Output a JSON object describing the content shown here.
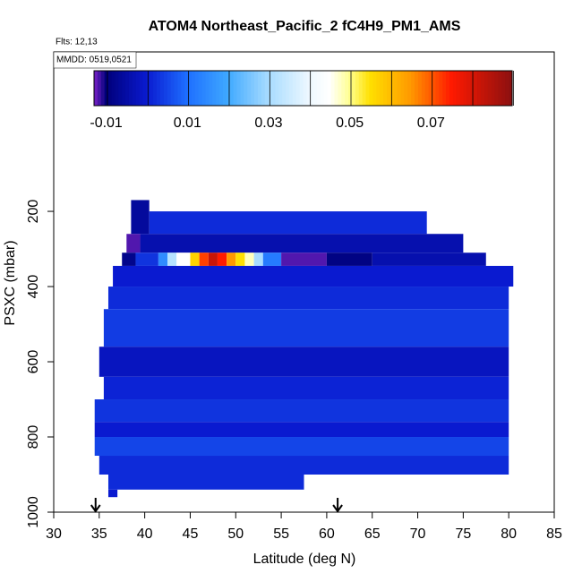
{
  "chart_data": {
    "type": "heatmap",
    "title": "ATOM4 Northeast_Pacific_2 fC4H9_PM1_AMS",
    "annotations": [
      "Flts: 12,13",
      "MMDD: 0519,0521"
    ],
    "xlabel": "Latitude (deg N)",
    "ylabel": "PSXC (mbar)",
    "xlim": [
      30,
      85
    ],
    "xticks": [
      30,
      35,
      40,
      45,
      50,
      55,
      60,
      65,
      70,
      75,
      80,
      85
    ],
    "ylim": [
      1000,
      -224
    ],
    "yticks": [
      200,
      400,
      600,
      800,
      1000
    ],
    "arrows": [
      34.6,
      61.2
    ],
    "colorbar_lim": [
      -0.013,
      0.09
    ],
    "colorbar_ticks": [
      -0.01,
      0.01,
      0.03,
      0.05,
      0.07
    ],
    "colorscale": [
      [
        -0.013,
        "#7a22c8"
      ],
      [
        -0.01,
        "#00007a"
      ],
      [
        0.0,
        "#0a1ad0"
      ],
      [
        0.01,
        "#1e6fff"
      ],
      [
        0.02,
        "#3fa9ff"
      ],
      [
        0.03,
        "#a8dcff"
      ],
      [
        0.04,
        "#eef8ff"
      ],
      [
        0.045,
        "#ffffff"
      ],
      [
        0.05,
        "#ffff90"
      ],
      [
        0.055,
        "#ffe000"
      ],
      [
        0.065,
        "#ff9900"
      ],
      [
        0.075,
        "#ff1a00"
      ],
      [
        0.09,
        "#8b1010"
      ]
    ],
    "cells": [
      {
        "lat": [
          38.5,
          40.5
        ],
        "p": [
          170,
          260
        ],
        "value": -0.006
      },
      {
        "lat": [
          40.5,
          71
        ],
        "p": [
          200,
          260
        ],
        "value": 0.002
      },
      {
        "lat": [
          38,
          39.5
        ],
        "p": [
          260,
          310
        ],
        "value": -0.012
      },
      {
        "lat": [
          39.5,
          75
        ],
        "p": [
          260,
          310
        ],
        "value": -0.004
      },
      {
        "lat": [
          37.5,
          39
        ],
        "p": [
          310,
          345
        ],
        "value": -0.008
      },
      {
        "lat": [
          39,
          41.5
        ],
        "p": [
          310,
          345
        ],
        "value": 0.003
      },
      {
        "lat": [
          41.5,
          42.5
        ],
        "p": [
          310,
          345
        ],
        "value": 0.015
      },
      {
        "lat": [
          42.5,
          43.5
        ],
        "p": [
          310,
          345
        ],
        "value": 0.032
      },
      {
        "lat": [
          43.5,
          45
        ],
        "p": [
          310,
          345
        ],
        "value": 0.045
      },
      {
        "lat": [
          45,
          46
        ],
        "p": [
          310,
          345
        ],
        "value": 0.057
      },
      {
        "lat": [
          46,
          47
        ],
        "p": [
          310,
          345
        ],
        "value": 0.072
      },
      {
        "lat": [
          47,
          48
        ],
        "p": [
          310,
          345
        ],
        "value": 0.082
      },
      {
        "lat": [
          48,
          49
        ],
        "p": [
          310,
          345
        ],
        "value": 0.075
      },
      {
        "lat": [
          49,
          50
        ],
        "p": [
          310,
          345
        ],
        "value": 0.065
      },
      {
        "lat": [
          50,
          51
        ],
        "p": [
          310,
          345
        ],
        "value": 0.055
      },
      {
        "lat": [
          51,
          52
        ],
        "p": [
          310,
          345
        ],
        "value": 0.048
      },
      {
        "lat": [
          52,
          53
        ],
        "p": [
          310,
          345
        ],
        "value": 0.03
      },
      {
        "lat": [
          53,
          55
        ],
        "p": [
          310,
          345
        ],
        "value": 0.012
      },
      {
        "lat": [
          55,
          60
        ],
        "p": [
          310,
          345
        ],
        "value": -0.012
      },
      {
        "lat": [
          60,
          65
        ],
        "p": [
          310,
          345
        ],
        "value": -0.009
      },
      {
        "lat": [
          65,
          77.5
        ],
        "p": [
          310,
          345
        ],
        "value": -0.004
      },
      {
        "lat": [
          36.5,
          80.5
        ],
        "p": [
          345,
          400
        ],
        "value": 0.0
      },
      {
        "lat": [
          36,
          80
        ],
        "p": [
          400,
          460
        ],
        "value": 0.002
      },
      {
        "lat": [
          35.5,
          80
        ],
        "p": [
          460,
          560
        ],
        "value": 0.004
      },
      {
        "lat": [
          35,
          80
        ],
        "p": [
          560,
          640
        ],
        "value": -0.002
      },
      {
        "lat": [
          35.5,
          80
        ],
        "p": [
          640,
          700
        ],
        "value": 0.001
      },
      {
        "lat": [
          34.5,
          80
        ],
        "p": [
          700,
          760
        ],
        "value": 0.003
      },
      {
        "lat": [
          34.5,
          80
        ],
        "p": [
          760,
          800
        ],
        "value": 0.0
      },
      {
        "lat": [
          34.5,
          80
        ],
        "p": [
          800,
          850
        ],
        "value": 0.005
      },
      {
        "lat": [
          35,
          80
        ],
        "p": [
          850,
          900
        ],
        "value": 0.002
      },
      {
        "lat": [
          36,
          57.5
        ],
        "p": [
          900,
          940
        ],
        "value": 0.002
      },
      {
        "lat": [
          36,
          37
        ],
        "p": [
          940,
          960
        ],
        "value": 0.0
      }
    ]
  }
}
